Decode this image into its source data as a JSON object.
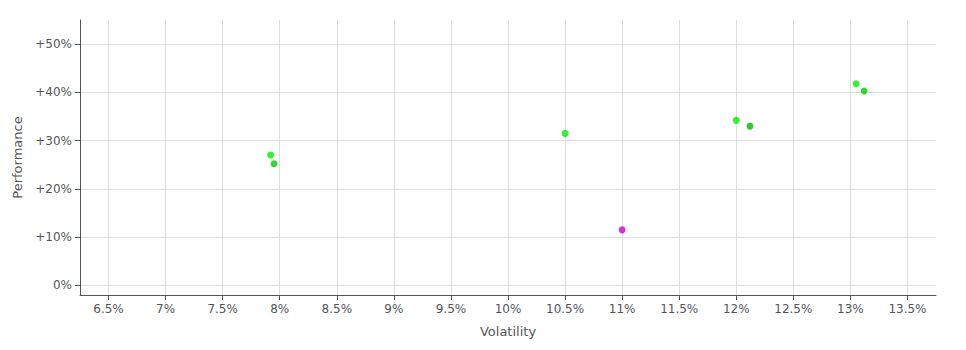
{
  "chart_data": {
    "type": "scatter",
    "x": [
      7.92,
      7.95,
      10.5,
      11.0,
      12.0,
      12.12,
      13.05,
      13.12
    ],
    "values": [
      27.0,
      25.2,
      31.5,
      11.5,
      34.2,
      33.0,
      41.8,
      40.3
    ],
    "colors": [
      "#00ee00",
      "#00cc00",
      "#00ee00",
      "#cc00cc",
      "#00ee00",
      "#00bb00",
      "#00ee00",
      "#00cc00"
    ],
    "xlabel": "Volatility",
    "ylabel": "Performance",
    "xlim": [
      6.25,
      13.75
    ],
    "ylim": [
      -2,
      55
    ],
    "xticks": [
      {
        "value": 6.5,
        "label": "6.5%"
      },
      {
        "value": 7.0,
        "label": "7%"
      },
      {
        "value": 7.5,
        "label": "7.5%"
      },
      {
        "value": 8.0,
        "label": "8%"
      },
      {
        "value": 8.5,
        "label": "8.5%"
      },
      {
        "value": 9.0,
        "label": "9%"
      },
      {
        "value": 9.5,
        "label": "9.5%"
      },
      {
        "value": 10.0,
        "label": "10%"
      },
      {
        "value": 10.5,
        "label": "10.5%"
      },
      {
        "value": 11.0,
        "label": "11%"
      },
      {
        "value": 11.5,
        "label": "11.5%"
      },
      {
        "value": 12.0,
        "label": "12%"
      },
      {
        "value": 12.5,
        "label": "12.5%"
      },
      {
        "value": 13.0,
        "label": "13%"
      },
      {
        "value": 13.5,
        "label": "13.5%"
      }
    ],
    "yticks": [
      {
        "value": 0,
        "label": "0%"
      },
      {
        "value": 10,
        "label": "+10%"
      },
      {
        "value": 20,
        "label": "+20%"
      },
      {
        "value": 30,
        "label": "+30%"
      },
      {
        "value": 40,
        "label": "+40%"
      },
      {
        "value": 50,
        "label": "+50%"
      }
    ],
    "grid": true
  }
}
